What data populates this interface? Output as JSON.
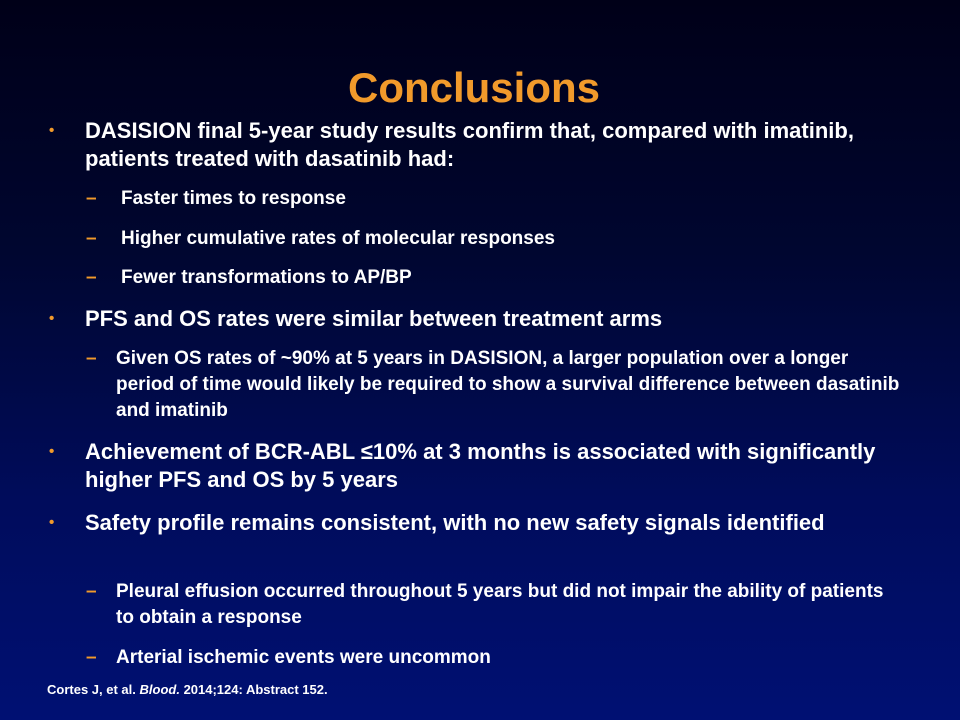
{
  "slide": {
    "title": "Conclusions",
    "bullets": [
      {
        "text": "DASISION final 5-year study results confirm that, compared with imatinib, patients treated with dasatinib had:",
        "marker": "•",
        "subs": [
          {
            "text": "Faster times to response",
            "marker": "–"
          },
          {
            "text": "Higher cumulative rates of molecular responses",
            "marker": "–"
          },
          {
            "text": "Fewer transformations to AP/BP",
            "marker": "–"
          }
        ]
      },
      {
        "text": "PFS and OS rates were similar between treatment arms",
        "marker": "•",
        "subs": [
          {
            "text": "Given OS rates of ~90% at 5 years in DASISION, a larger population over a longer period of time would likely be required to show a survival difference between dasatinib and imatinib",
            "marker": "–"
          }
        ]
      },
      {
        "text": "Achievement of BCR-ABL ≤10% at 3 months is associated with significantly higher PFS and OS by 5 years",
        "marker": "•",
        "subs": []
      },
      {
        "text": "Safety profile remains consistent, with no new safety signals identified",
        "marker": "•",
        "subs": [
          {
            "text": "Pleural effusion occurred throughout 5 years but did not impair the ability of patients to obtain a response",
            "marker": "–"
          },
          {
            "text": "Arterial ischemic events were uncommon",
            "marker": "–"
          }
        ]
      }
    ],
    "citation": {
      "authors": "Cortes J, et al.",
      "journal": "Blood.",
      "details": "2014;124: Abstract 152."
    }
  },
  "colors": {
    "title": "#f19a2b",
    "markers": "#f19a2b",
    "text": "#ffffff",
    "background_top": "#000018",
    "background_bottom": "#001073"
  }
}
